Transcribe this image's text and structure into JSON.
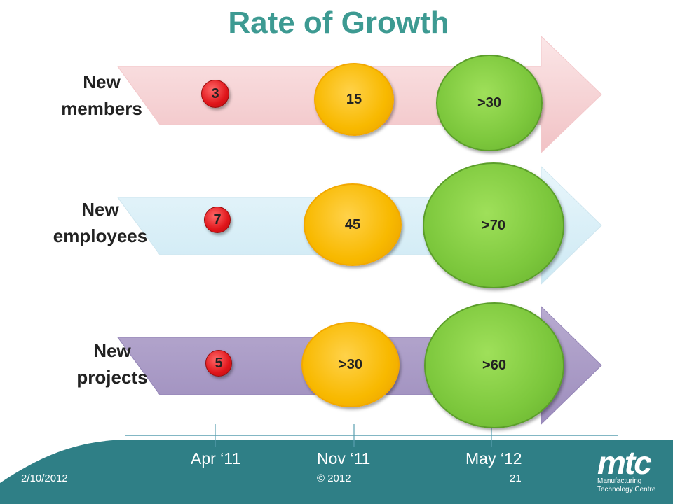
{
  "title": "Rate of Growth",
  "rows": [
    {
      "label_line1": "New",
      "label_line2": "members",
      "apr_11": "3",
      "nov_11": "15",
      "may_12": ">30",
      "arrow_color": "#f6d3d5"
    },
    {
      "label_line1": "New",
      "label_line2": "employees",
      "apr_11": "7",
      "nov_11": "45",
      "may_12": ">70",
      "arrow_color": "#d7eef7"
    },
    {
      "label_line1": "New",
      "label_line2": "projects",
      "apr_11": "5",
      "nov_11": ">30",
      "may_12": ">60",
      "arrow_color": "#a99ac6"
    }
  ],
  "timeline": [
    "Apr ‘11",
    "Nov ‘11",
    "May ‘12"
  ],
  "footer": {
    "date": "2/10/2012",
    "copyright": "© 2012",
    "page": "21"
  },
  "logo": {
    "name": "mtc",
    "line1": "Manufacturing",
    "line2": "Technology Centre"
  },
  "colors": {
    "title": "#3d9a92",
    "footer_band": "#2f7f86",
    "red_bubble": "#e0151a",
    "orange_bubble": "#f8b900",
    "green_bubble": "#7cc73c"
  }
}
